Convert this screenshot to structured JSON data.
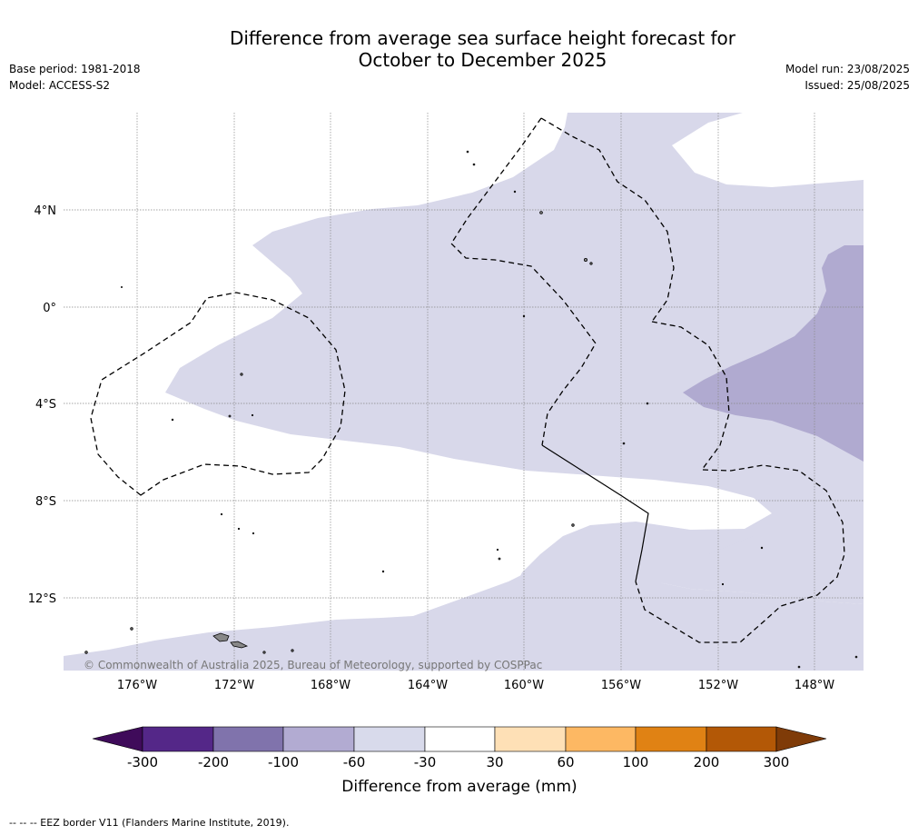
{
  "header": {
    "title_line1": "Difference from average sea surface height forecast for",
    "title_line2": "October to December 2025",
    "base_period": "Base period: 1981-2018",
    "model": "Model: ACCESS-S2",
    "model_run": "Model run: 23/08/2025",
    "issued": "Issued: 25/08/2025"
  },
  "map": {
    "lat_labels": [
      "4°N",
      "0°",
      "4°S",
      "8°S",
      "12°S"
    ],
    "lon_labels": [
      "176°W",
      "172°W",
      "168°W",
      "164°W",
      "160°W",
      "156°W",
      "152°W",
      "148°W"
    ],
    "copyright": "© Commonwealth of Australia 2025, Bureau of Meteorology, supported by COSPPac",
    "colors": {
      "light_lavender": "#d8d8ea",
      "mid_lavender": "#b0aad0",
      "land_grey": "#999999"
    }
  },
  "colorbar": {
    "title": "Difference from average (mm)",
    "tick_labels": [
      "-300",
      "-200",
      "-100",
      "-60",
      "-30",
      "30",
      "60",
      "100",
      "200",
      "300"
    ],
    "colors": [
      "#3f0b5a",
      "#542788",
      "#8073ac",
      "#b2abd2",
      "#d8daeb",
      "#ffffff",
      "#fee0b6",
      "#fdb863",
      "#e08214",
      "#b35806",
      "#7f3b08"
    ]
  },
  "footer": {
    "note": "--  --  -- EEZ border V11 (Flanders Marine Institute, 2019)."
  }
}
